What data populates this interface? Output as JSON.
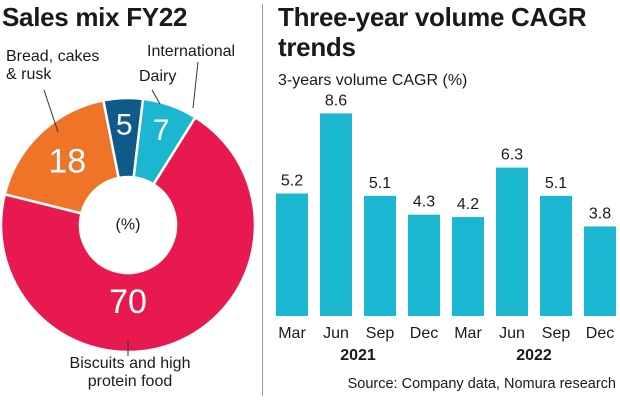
{
  "chart_data": [
    {
      "type": "pie",
      "title": "Sales mix FY22",
      "center_label": "(%)",
      "slices": [
        {
          "label": "Biscuits and high protein food",
          "value": 70,
          "color": "#e8194f"
        },
        {
          "label": "Bread, cakes & rusk",
          "value": 18,
          "color": "#f07427"
        },
        {
          "label": "Dairy",
          "value": 5,
          "color": "#0f5a8a"
        },
        {
          "label": "International",
          "value": 7,
          "color": "#1bb6d0"
        }
      ]
    },
    {
      "type": "bar",
      "title": "Three-year volume CAGR trends",
      "subtitle": "3-years volume CAGR (%)",
      "categories": [
        "Mar",
        "Jun",
        "Sep",
        "Dec",
        "Mar",
        "Jun",
        "Sep",
        "Dec"
      ],
      "year_groups": [
        {
          "label": "2021",
          "start": 0,
          "end": 3
        },
        {
          "label": "2022",
          "start": 4,
          "end": 7
        }
      ],
      "values": [
        5.2,
        8.6,
        5.1,
        4.3,
        4.2,
        6.3,
        5.1,
        3.8
      ],
      "value_labels": [
        "5.2",
        "8.6",
        "5.1",
        "4.3",
        "4.2",
        "6.3",
        "5.1",
        "3.8"
      ],
      "ylim": [
        0,
        9
      ],
      "bar_color": "#1bb6d0",
      "source": "Source: Company data, Nomura research"
    }
  ],
  "pie_labels": {
    "bread": "Bread, cakes\n& rusk",
    "international": "International",
    "dairy": "Dairy",
    "biscuits": "Biscuits and high\nprotein food"
  }
}
